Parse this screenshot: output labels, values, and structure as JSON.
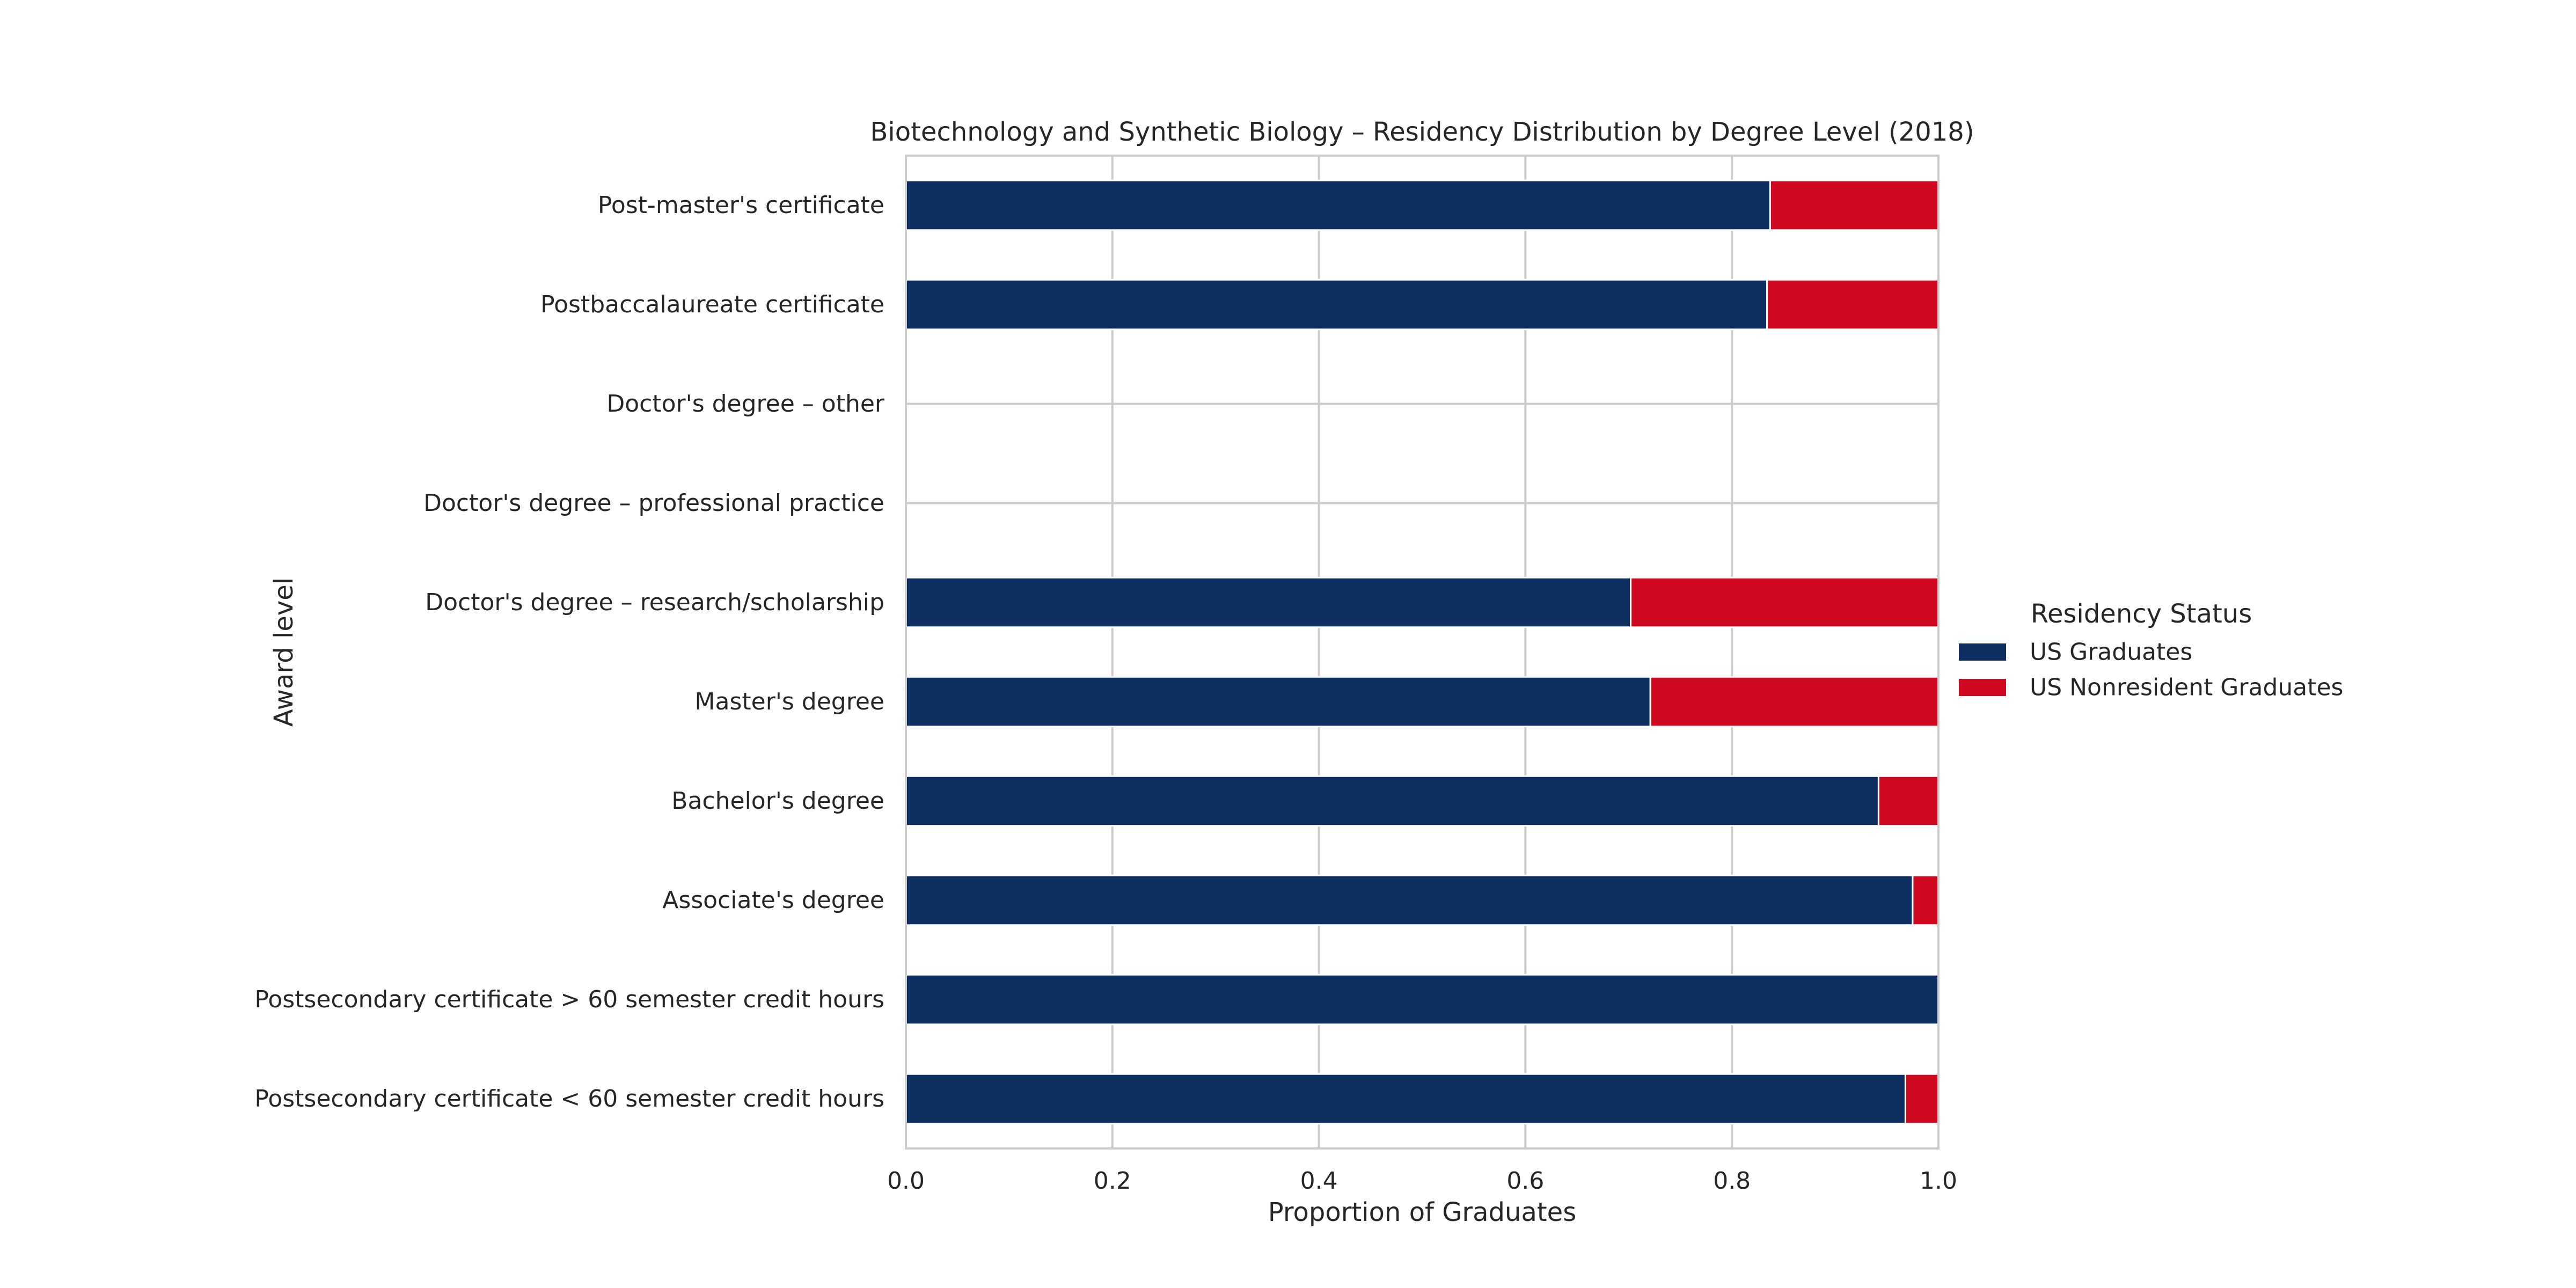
{
  "chart_data": {
    "type": "bar",
    "orientation": "horizontal",
    "stacked": true,
    "title": "Biotechnology and Synthetic Biology – Residency Distribution by Degree Level (2018)",
    "xlabel": "Proportion of Graduates",
    "ylabel": "Award level",
    "xlim": [
      0,
      1
    ],
    "xticks": [
      "0.0",
      "0.2",
      "0.4",
      "0.6",
      "0.8",
      "1.0"
    ],
    "grid": true,
    "legend": {
      "title": "Residency Status",
      "placement": "center-right, outside plot"
    },
    "categories": [
      "Post-master's certificate",
      "Postbaccalaureate certificate",
      "Doctor's degree – other",
      "Doctor's degree – professional practice",
      "Doctor's degree – research/scholarship",
      "Master's degree",
      "Bachelor's degree",
      "Associate's degree",
      "Postsecondary certificate > 60 semester credit hours",
      "Postsecondary certificate < 60 semester credit hours"
    ],
    "series": [
      {
        "name": "US Graduates",
        "color": "#0c2f5f",
        "values": [
          0.837,
          0.834,
          0,
          0,
          0.702,
          0.721,
          0.942,
          0.975,
          1.0,
          0.968
        ]
      },
      {
        "name": "US Nonresident Graduates",
        "color": "#cf0a20",
        "values": [
          0.163,
          0.166,
          0,
          0,
          0.298,
          0.279,
          0.058,
          0.025,
          0.0,
          0.032
        ]
      }
    ]
  }
}
